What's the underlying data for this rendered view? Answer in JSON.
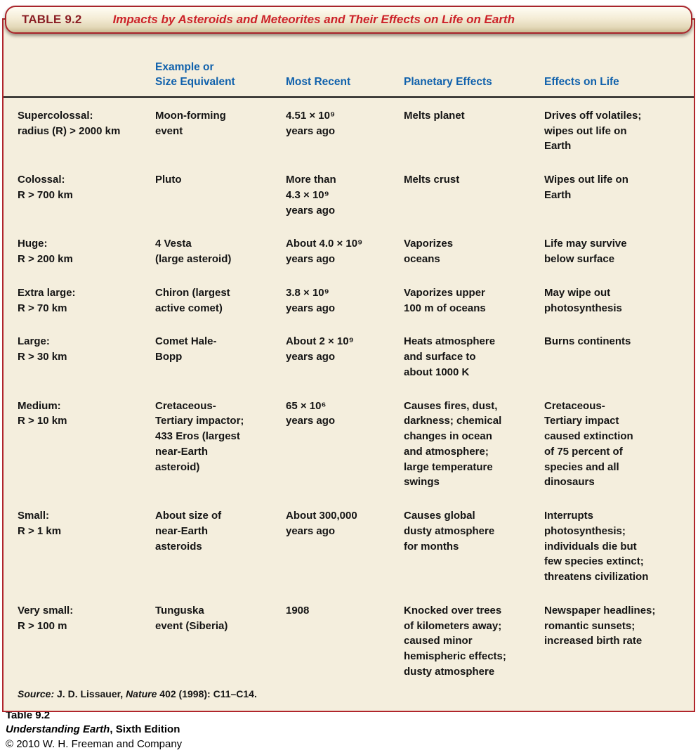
{
  "colors": {
    "accent_red_border": "#b0252c",
    "title_red": "#cc2229",
    "table_label_maroon": "#8a1e24",
    "column_header_blue": "#1061ac",
    "table_background_cream": "#f4eedd"
  },
  "title_bar": {
    "label": "TABLE 9.2",
    "title": "Impacts by Asteroids and Meteorites and Their Effects on Life on Earth"
  },
  "table": {
    "columns": [
      "",
      "Example or\nSize Equivalent",
      "Most Recent",
      "Planetary Effects",
      "Effects on Life"
    ],
    "rows": [
      [
        "Supercolossal:\nradius (R) > 2000 km",
        "Moon-forming\nevent",
        "4.51 × 10⁹\nyears ago",
        "Melts planet",
        "Drives off volatiles;\nwipes out life on\nEarth"
      ],
      [
        "Colossal:\nR > 700 km",
        "Pluto",
        "More than\n4.3 × 10⁹\nyears ago",
        "Melts crust",
        "Wipes out life on\nEarth"
      ],
      [
        "Huge:\nR > 200 km",
        "4 Vesta\n(large asteroid)",
        "About 4.0 × 10⁹\nyears ago",
        "Vaporizes\noceans",
        "Life may survive\nbelow surface"
      ],
      [
        "Extra large:\nR > 70 km",
        "Chiron (largest\nactive comet)",
        "3.8 × 10⁹\nyears ago",
        "Vaporizes upper\n100 m of oceans",
        "May wipe out\nphotosynthesis"
      ],
      [
        "Large:\nR > 30 km",
        "Comet Hale-\nBopp",
        "About 2 × 10⁹\nyears ago",
        "Heats atmosphere\nand surface to\nabout 1000 K",
        "Burns continents"
      ],
      [
        "Medium:\nR > 10 km",
        "Cretaceous-\nTertiary impactor;\n433 Eros (largest\nnear-Earth\nasteroid)",
        "65 × 10⁶\nyears ago",
        "Causes fires, dust,\ndarkness; chemical\nchanges in ocean\nand atmosphere;\nlarge temperature\nswings",
        "Cretaceous-\nTertiary impact\ncaused extinction\nof 75 percent of\nspecies and all\ndinosaurs"
      ],
      [
        "Small:\nR > 1 km",
        "About size of\nnear-Earth\nasteroids",
        "About 300,000\nyears ago",
        "Causes global\ndusty atmosphere\nfor months",
        "Interrupts\nphotosynthesis;\nindividuals die but\nfew species extinct;\nthreatens civilization"
      ],
      [
        "Very small:\nR > 100 m",
        "Tunguska\nevent (Siberia)",
        "1908",
        "Knocked over trees\nof kilometers away;\ncaused minor\nhemispheric effects;\ndusty atmosphere",
        "Newspaper headlines;\nromantic sunsets;\nincreased birth rate"
      ]
    ],
    "source": {
      "label": "Source:",
      "pre": " J. D. Lissauer, ",
      "journal": "Nature",
      "post": " 402 (1998): C11–C14."
    }
  },
  "credit": {
    "line1": "Table 9.2",
    "book_title": "Understanding Earth",
    "edition": ", Sixth Edition",
    "line3": "© 2010 W. H. Freeman and Company"
  }
}
